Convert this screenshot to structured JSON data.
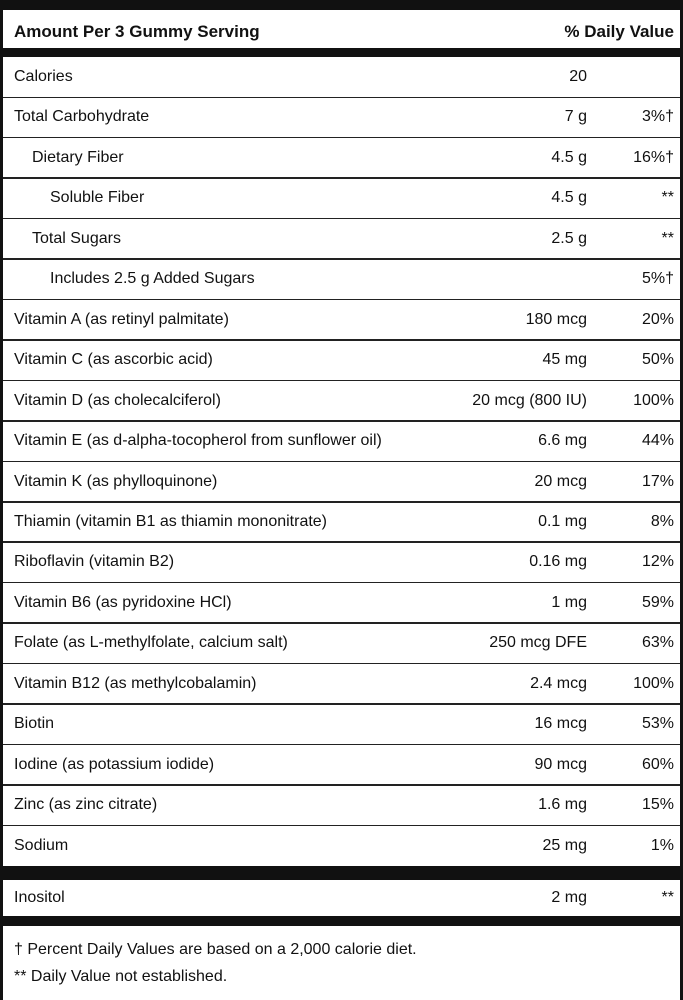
{
  "header": {
    "amount": "Amount Per 3 Gummy Serving",
    "daily_value": "% Daily Value"
  },
  "rows": [
    {
      "label": "Calories",
      "amount": "20"
    },
    {
      "label": "Total Carbohydrate",
      "amount": "7 g",
      "dv": "3%†"
    },
    {
      "label": "Dietary Fiber",
      "amount": "4.5 g",
      "dv": "16%†"
    },
    {
      "label": "Soluble Fiber",
      "amount": "4.5 g",
      "dv": "**"
    },
    {
      "label": "Total Sugars",
      "amount": "2.5 g",
      "dv": "**"
    },
    {
      "label": "Includes 2.5 g Added Sugars",
      "dv": "5%†"
    },
    {
      "label": "Vitamin A (as retinyl palmitate)",
      "amount": "180 mcg",
      "dv": "20%"
    },
    {
      "label": "Vitamin C (as ascorbic acid)",
      "amount": "45 mg",
      "dv": "50%"
    },
    {
      "label": "Vitamin D (as cholecalciferol)",
      "amount": "20 mcg (800 IU)",
      "dv": "100%"
    },
    {
      "label": "Vitamin E (as d-alpha-tocopherol from sunflower oil)",
      "amount": "6.6 mg",
      "dv": "44%"
    },
    {
      "label": "Vitamin K (as phylloquinone)",
      "amount": "20 mcg",
      "dv": "17%"
    },
    {
      "label": "Thiamin (vitamin B1 as thiamin mononitrate)",
      "amount": "0.1 mg",
      "dv": "8%"
    },
    {
      "label": "Riboflavin (vitamin B2)",
      "amount": "0.16 mg",
      "dv": "12%"
    },
    {
      "label": "Vitamin B6 (as pyridoxine HCl)",
      "amount": "1 mg",
      "dv": "59%"
    },
    {
      "label": "Folate (as L-methylfolate, calcium salt)",
      "amount": "250 mcg DFE",
      "dv": "63%"
    },
    {
      "label": "Vitamin B12 (as methylcobalamin)",
      "amount": "2.4 mcg",
      "dv": "100%"
    },
    {
      "label": "Biotin",
      "amount": "16 mcg",
      "dv": "53%"
    },
    {
      "label": "Iodine (as potassium iodide)",
      "amount": "90 mcg",
      "dv": "60%"
    },
    {
      "label": "Zinc (as zinc citrate)",
      "amount": "1.6 mg",
      "dv": "15%"
    },
    {
      "label": "Sodium",
      "amount": "25 mg",
      "dv": "1%"
    }
  ],
  "other_rows": [
    {
      "label": "Inositol",
      "amount": "2 mg",
      "dv": "**"
    }
  ],
  "footnotes": [
    "† Percent Daily Values are based on a 2,000 calorie diet.",
    "** Daily Value not established."
  ]
}
